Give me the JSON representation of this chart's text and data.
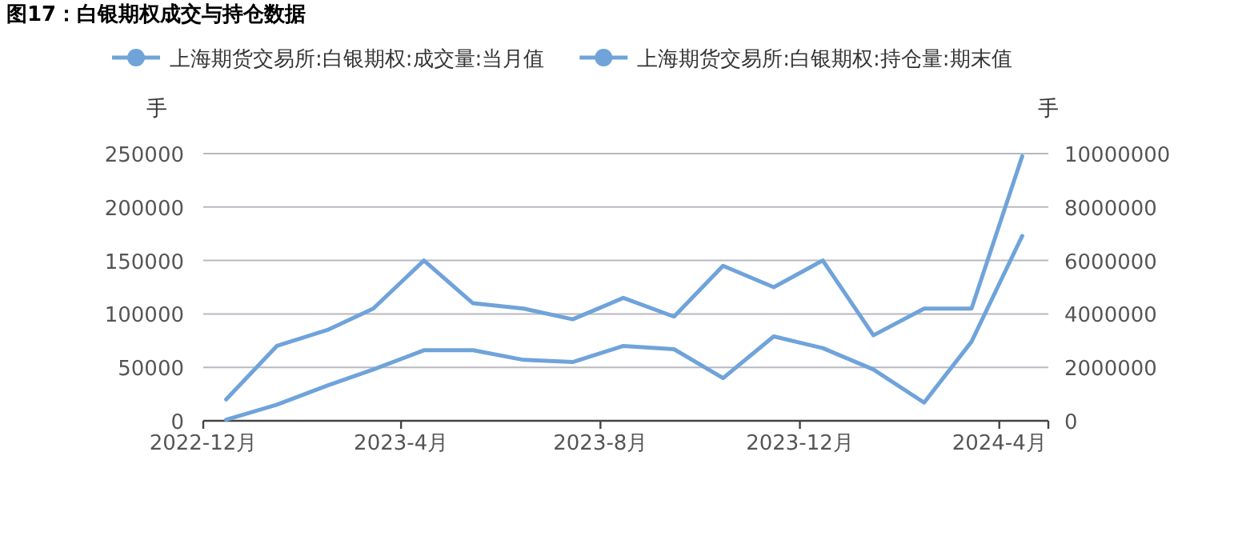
{
  "chart_data": {
    "type": "line",
    "title": "图17：白银期权成交与持仓数据",
    "ylabel": "手",
    "y2label": "手",
    "x": [
      "2022-12-15",
      "2023-01-15",
      "2023-02-15",
      "2023-03-15",
      "2023-04-15",
      "2023-05-15",
      "2023-06-15",
      "2023-07-15",
      "2023-08-15",
      "2023-09-15",
      "2023-10-15",
      "2023-11-15",
      "2023-12-15",
      "2024-01-15",
      "2024-02-15",
      "2024-03-15",
      "2024-04-15"
    ],
    "xlim": [
      "2022-12-01",
      "2024-05-01"
    ],
    "xticks": [
      {
        "value": "2022-12-01",
        "label": "2022-12月"
      },
      {
        "value": "2023-04-01",
        "label": "2023-4月"
      },
      {
        "value": "2023-08-01",
        "label": "2023-8月"
      },
      {
        "value": "2023-12-01",
        "label": "2023-12月"
      },
      {
        "value": "2024-04-01",
        "label": "2024-4月"
      },
      {
        "value": "2024-05-01",
        "label": null
      }
    ],
    "series": [
      {
        "name": "上海期货交易所:白银期权:成交量:当月值",
        "color": "#6fa3da",
        "axis": "y2",
        "values": [
          800000,
          2800000,
          3400000,
          4200000,
          6000000,
          4400000,
          4200000,
          3800000,
          4600000,
          3900000,
          5800000,
          5000000,
          6000000,
          3200000,
          4200000,
          4200000,
          9900000
        ]
      },
      {
        "name": "上海期货交易所:白银期权:持仓量:期末值",
        "color": "#6fa3da",
        "axis": "y",
        "values": [
          1000,
          15000,
          33000,
          48000,
          66000,
          66000,
          57000,
          55000,
          70000,
          67000,
          40000,
          79000,
          68000,
          48000,
          17000,
          74000,
          173000
        ]
      }
    ],
    "ylim": [
      0,
      250000
    ],
    "yticks": [
      0,
      50000,
      100000,
      150000,
      200000,
      250000
    ],
    "y2lim": [
      0,
      10000000
    ],
    "y2ticks": [
      0,
      2000000,
      4000000,
      6000000,
      8000000,
      10000000
    ],
    "grid": "y",
    "legend": "top"
  }
}
